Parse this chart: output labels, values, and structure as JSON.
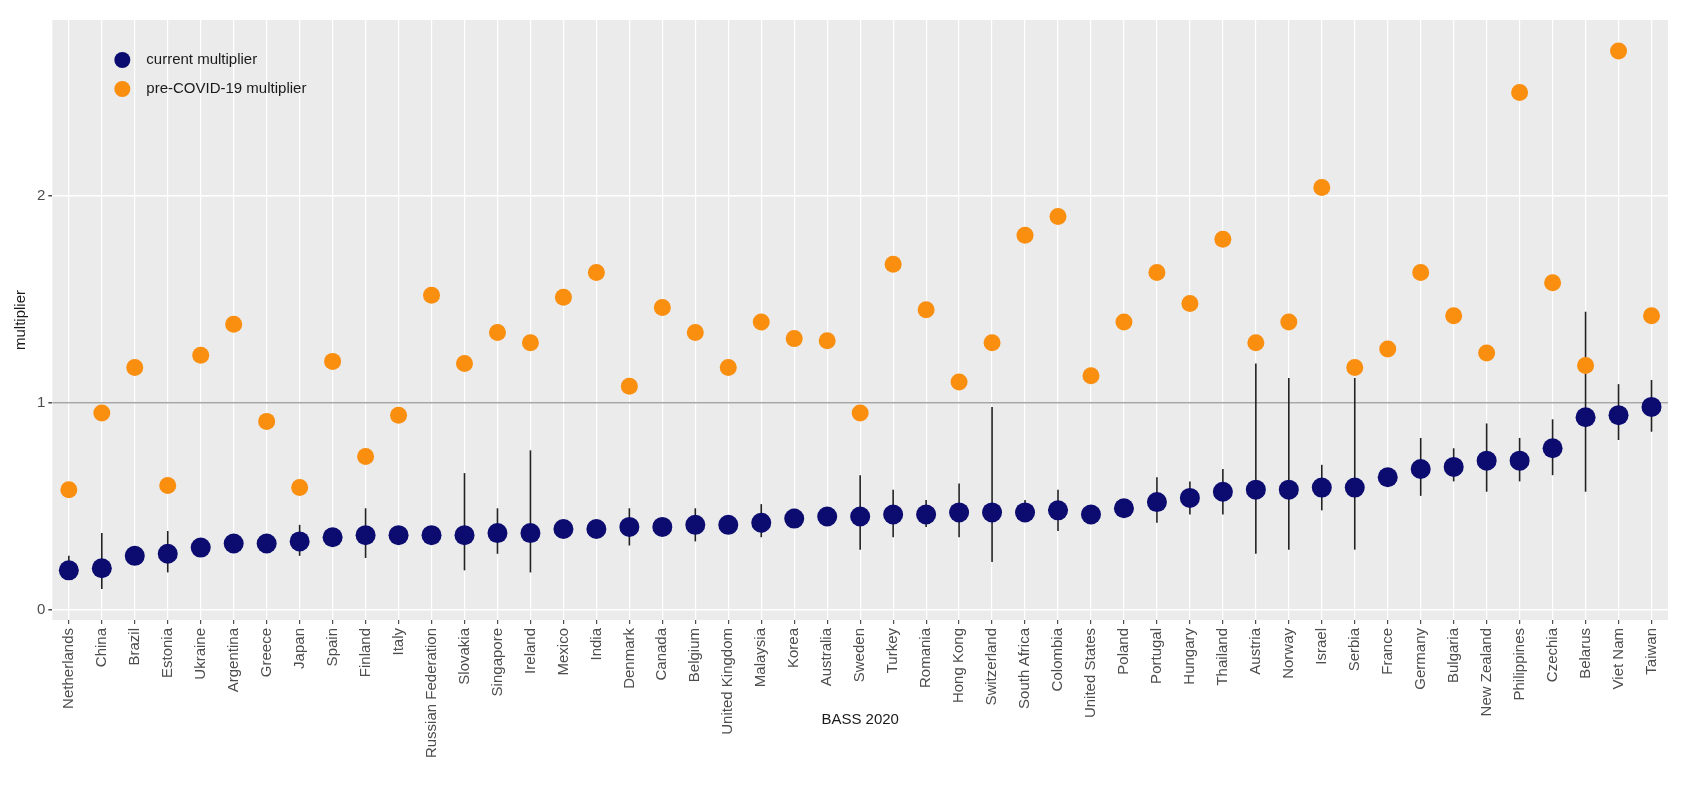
{
  "chart_data": {
    "type": "scatter",
    "xlabel": "BASS 2020",
    "ylabel": "multiplier",
    "categories": [
      "Netherlands",
      "China",
      "Brazil",
      "Estonia",
      "Ukraine",
      "Argentina",
      "Greece",
      "Japan",
      "Spain",
      "Finland",
      "Italy",
      "Russian Federation",
      "Slovakia",
      "Singapore",
      "Ireland",
      "Mexico",
      "India",
      "Denmark",
      "Canada",
      "Belgium",
      "United Kingdom",
      "Malaysia",
      "Korea",
      "Australia",
      "Sweden",
      "Turkey",
      "Romania",
      "Hong Kong",
      "Switzerland",
      "South Africa",
      "Colombia",
      "United States",
      "Poland",
      "Portugal",
      "Hungary",
      "Thailand",
      "Austria",
      "Norway",
      "Israel",
      "Serbia",
      "France",
      "Germany",
      "Bulgaria",
      "New Zealand",
      "Philippines",
      "Czechia",
      "Belarus",
      "Viet Nam",
      "Taiwan"
    ],
    "series": [
      {
        "name": "current multiplier",
        "color": "#0b0b70",
        "values": [
          0.19,
          0.2,
          0.26,
          0.27,
          0.3,
          0.32,
          0.32,
          0.33,
          0.35,
          0.36,
          0.36,
          0.36,
          0.36,
          0.37,
          0.37,
          0.39,
          0.39,
          0.4,
          0.4,
          0.41,
          0.41,
          0.42,
          0.44,
          0.45,
          0.45,
          0.46,
          0.46,
          0.47,
          0.47,
          0.47,
          0.48,
          0.46,
          0.49,
          0.52,
          0.54,
          0.57,
          0.58,
          0.58,
          0.59,
          0.59,
          0.64,
          0.68,
          0.69,
          0.72,
          0.72,
          0.78,
          0.93,
          0.94,
          0.98
        ],
        "errors": [
          [
            0.15,
            0.26
          ],
          [
            0.1,
            0.37
          ],
          null,
          [
            0.18,
            0.38
          ],
          null,
          null,
          null,
          [
            0.26,
            0.41
          ],
          null,
          [
            0.25,
            0.49
          ],
          null,
          null,
          [
            0.19,
            0.66
          ],
          [
            0.27,
            0.49
          ],
          [
            0.18,
            0.77
          ],
          null,
          null,
          [
            0.31,
            0.49
          ],
          null,
          [
            0.33,
            0.49
          ],
          null,
          [
            0.35,
            0.51
          ],
          null,
          null,
          [
            0.29,
            0.65
          ],
          [
            0.35,
            0.58
          ],
          [
            0.4,
            0.53
          ],
          [
            0.35,
            0.61
          ],
          [
            0.23,
            0.98
          ],
          [
            0.43,
            0.53
          ],
          [
            0.38,
            0.58
          ],
          null,
          null,
          [
            0.42,
            0.64
          ],
          [
            0.46,
            0.62
          ],
          [
            0.46,
            0.68
          ],
          [
            0.27,
            1.19
          ],
          [
            0.29,
            1.12
          ],
          [
            0.48,
            0.7
          ],
          [
            0.29,
            1.12
          ],
          null,
          [
            0.55,
            0.83
          ],
          [
            0.62,
            0.78
          ],
          [
            0.57,
            0.9
          ],
          [
            0.62,
            0.83
          ],
          [
            0.65,
            0.92
          ],
          [
            0.57,
            1.44
          ],
          [
            0.82,
            1.09
          ],
          [
            0.86,
            1.11
          ]
        ]
      },
      {
        "name": "pre-COVID-19 multiplier",
        "color": "#f98e0f",
        "values": [
          0.58,
          0.95,
          1.17,
          0.6,
          1.23,
          1.38,
          0.91,
          0.59,
          1.2,
          0.74,
          0.94,
          1.52,
          1.19,
          1.34,
          1.29,
          1.51,
          1.63,
          1.08,
          1.46,
          1.34,
          1.17,
          1.39,
          1.31,
          1.3,
          0.95,
          1.67,
          1.45,
          1.1,
          1.29,
          1.81,
          1.9,
          1.13,
          1.39,
          1.63,
          1.48,
          1.79,
          1.29,
          1.39,
          2.04,
          1.17,
          1.26,
          1.63,
          1.42,
          1.24,
          2.5,
          1.58,
          1.18,
          2.7,
          1.42
        ]
      }
    ],
    "ylim": [
      -0.05,
      2.85
    ],
    "yticks": [
      0,
      1,
      2
    ],
    "ref_lines": [
      {
        "axis": "y",
        "value": 1,
        "color": "#a6a6a6"
      }
    ],
    "grid": true,
    "legend": "top left",
    "marker": "circle"
  }
}
